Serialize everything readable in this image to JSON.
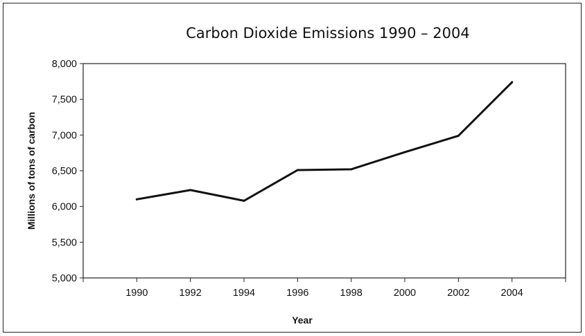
{
  "chart_data": {
    "type": "line",
    "title": "Carbon Dioxide Emissions 1990 – 2004",
    "xlabel": "Year",
    "ylabel": "Millions of tons of carbon",
    "x": [
      1990,
      1992,
      1994,
      1996,
      1998,
      2000,
      2002,
      2004
    ],
    "x_tick_labels": [
      "1990",
      "1992",
      "1994",
      "1996",
      "1998",
      "2000",
      "2002",
      "2004"
    ],
    "y_tick_labels": [
      "5,000",
      "5,500",
      "6,000",
      "6,500",
      "7,000",
      "7,500",
      "8,000"
    ],
    "series": [
      {
        "values": [
          6100,
          6230,
          6080,
          6510,
          6520,
          6760,
          6990,
          7740
        ]
      }
    ],
    "xlim": [
      1988,
      2006
    ],
    "ylim": [
      5000,
      8000
    ],
    "grid": false,
    "legend": "none",
    "line_color": "#111111"
  }
}
